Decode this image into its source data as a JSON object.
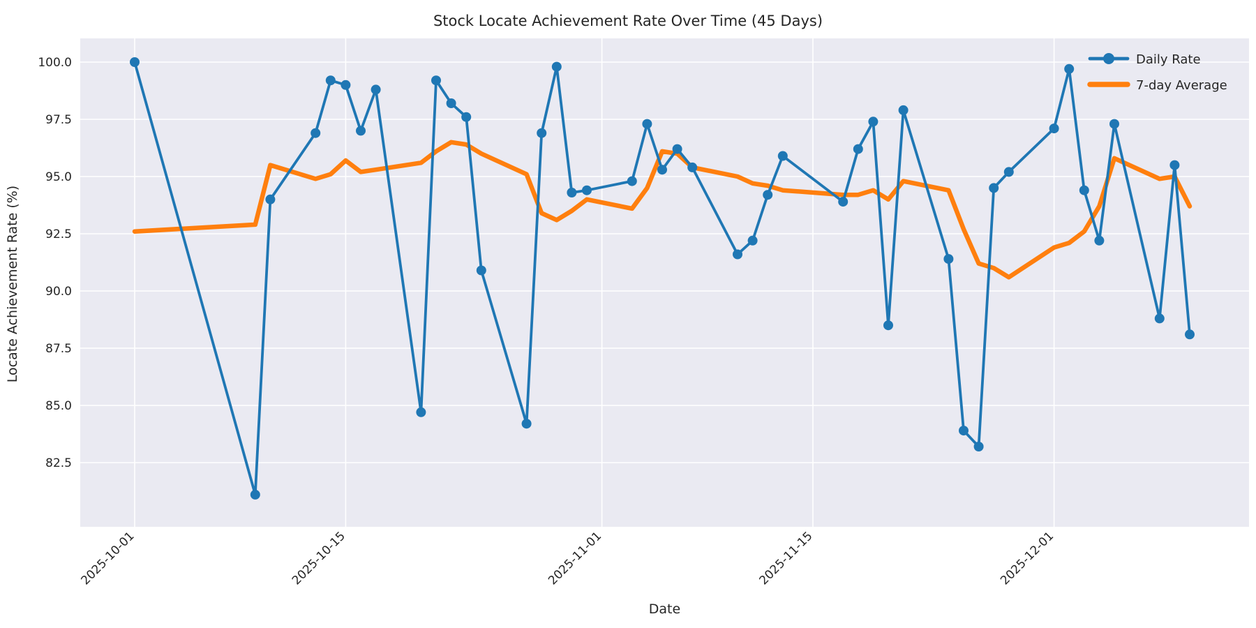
{
  "chart_data": {
    "type": "line",
    "title": "Stock Locate Achievement Rate Over Time (45 Days)",
    "xlabel": "Date",
    "ylabel": "Locate Achievement Rate (%)",
    "x_dates": [
      "2025-10-01",
      "2025-10-09",
      "2025-10-10",
      "2025-10-13",
      "2025-10-14",
      "2025-10-15",
      "2025-10-16",
      "2025-10-17",
      "2025-10-20",
      "2025-10-21",
      "2025-10-22",
      "2025-10-23",
      "2025-10-24",
      "2025-10-27",
      "2025-10-28",
      "2025-10-29",
      "2025-10-30",
      "2025-10-31",
      "2025-11-03",
      "2025-11-04",
      "2025-11-05",
      "2025-11-06",
      "2025-11-07",
      "2025-11-10",
      "2025-11-11",
      "2025-11-12",
      "2025-11-13",
      "2025-11-17",
      "2025-11-18",
      "2025-11-19",
      "2025-11-20",
      "2025-11-21",
      "2025-11-24",
      "2025-11-25",
      "2025-11-26",
      "2025-11-27",
      "2025-11-28",
      "2025-12-01",
      "2025-12-02",
      "2025-12-03",
      "2025-12-04",
      "2025-12-05",
      "2025-12-08",
      "2025-12-09",
      "2025-12-10"
    ],
    "series": [
      {
        "name": "Daily Rate",
        "color": "#1f77b4",
        "line_width": 3.8,
        "marker": "circle",
        "marker_radius": 7,
        "values": [
          100.0,
          81.1,
          94.0,
          96.9,
          99.2,
          99.0,
          97.0,
          98.8,
          84.7,
          99.2,
          98.2,
          97.6,
          90.9,
          84.2,
          96.9,
          99.8,
          94.3,
          94.4,
          94.8,
          97.3,
          95.3,
          96.2,
          95.4,
          91.6,
          92.2,
          94.2,
          95.9,
          93.9,
          96.2,
          97.4,
          88.5,
          97.9,
          91.4,
          83.9,
          83.2,
          94.5,
          95.2,
          97.1,
          99.7,
          94.4,
          92.2,
          97.3,
          88.8,
          95.5,
          88.1
        ]
      },
      {
        "name": "7-day Average",
        "color": "#ff7f0e",
        "line_width": 6.5,
        "marker": "none",
        "marker_radius": 0,
        "values": [
          92.6,
          92.9,
          95.5,
          94.9,
          95.1,
          95.7,
          95.2,
          95.3,
          95.6,
          96.1,
          96.5,
          96.4,
          96.0,
          95.1,
          93.4,
          93.1,
          93.5,
          94.0,
          93.6,
          94.5,
          96.1,
          96.0,
          95.4,
          95.0,
          94.7,
          94.6,
          94.4,
          94.2,
          94.2,
          94.4,
          94.0,
          94.8,
          94.4,
          92.7,
          91.2,
          91.0,
          90.6,
          91.9,
          92.1,
          92.6,
          93.7,
          95.8,
          94.9,
          95.0,
          93.7
        ]
      }
    ],
    "x_ticks": [
      "2025-10-01",
      "2025-10-15",
      "2025-11-01",
      "2025-11-15",
      "2025-12-01"
    ],
    "y_ticks": [
      "82.5",
      "85.0",
      "87.5",
      "90.0",
      "92.5",
      "95.0",
      "97.5",
      "100.0"
    ],
    "grid": true,
    "legend_position": "upper right",
    "axis_start_date": "2025-10-01",
    "styles": {
      "axes_bg": "#eaeaf2",
      "grid_color": "#ffffff",
      "fig_bg": "#ffffff",
      "text_color": "#262626",
      "tick_font_size": 17,
      "legend_font_size": 18
    }
  }
}
